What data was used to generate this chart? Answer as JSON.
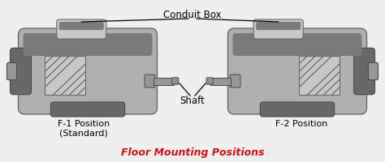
{
  "bg_color": "#efefef",
  "motor_body_color": "#b0b0b0",
  "motor_mid_color": "#989898",
  "motor_dark_color": "#686868",
  "motor_darker": "#484848",
  "motor_top_band": "#7a7a7a",
  "motor_light_color": "#c8c8c8",
  "shaft_color": "#909090",
  "shaft_dark": "#686868",
  "text_color": "#000000",
  "red_color": "#cc1111",
  "title": "Floor Mounting Positions",
  "label_f1": "F-1 Position\n(Standard)",
  "label_f2": "F-2 Position",
  "label_conduit": "Conduit Box",
  "label_shaft": "Shaft",
  "fig_width": 4.74,
  "fig_height": 2.0
}
